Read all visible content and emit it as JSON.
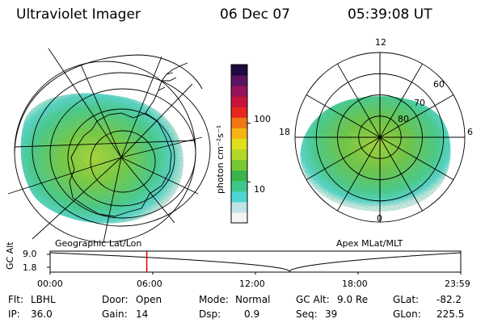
{
  "header": {
    "instrument": "Ultraviolet Imager",
    "date": "06 Dec 07",
    "time": "05:39:08 UT"
  },
  "colorbar": {
    "label": "photon cm⁻²s⁻¹",
    "ticks": [
      "100",
      "10"
    ],
    "tick_values": [
      100,
      10
    ],
    "range": [
      2,
      1000
    ],
    "scale": "log",
    "colors": [
      "#f4f4f4",
      "#bfe4e6",
      "#4fd4d4",
      "#3ec98b",
      "#3ab44b",
      "#78c832",
      "#b4d726",
      "#dfe01c",
      "#f5b414",
      "#f07814",
      "#e6281e",
      "#c8143c",
      "#96145a",
      "#5a1460",
      "#1e0a3c"
    ]
  },
  "left_map": {
    "caption": "Geographic Lat/Lon"
  },
  "right_map": {
    "caption": "Apex MLat/MLT",
    "hour_labels": {
      "top": "12",
      "left": "18",
      "right": "6",
      "bottom": "0"
    },
    "lat_labels": [
      "60",
      "70",
      "80"
    ],
    "lat_values": [
      60,
      70,
      80
    ]
  },
  "timeline": {
    "axis_label": "GC Alt",
    "y_ticks": [
      "9.0",
      "1.8"
    ],
    "y_values": [
      9.0,
      1.8
    ],
    "x_ticks": [
      "00:00",
      "06:00",
      "12:00",
      "18:00",
      "23:59"
    ],
    "current_time_hours": 5.65,
    "marker_color": "#e00000",
    "min_alt_time_hours": 14.0
  },
  "status": {
    "flt_label": "Flt:",
    "flt_value": "LBHL",
    "ip_label": "IP:",
    "ip_value": "36.0",
    "door_label": "Door:",
    "door_value": "Open",
    "gain_label": "Gain:",
    "gain_value": "14",
    "mode_label": "Mode:",
    "mode_value": "Normal",
    "dsp_label": "Dsp:",
    "dsp_value": "0.9",
    "gcalt_label": "GC Alt:",
    "gcalt_value": "9.0 Re",
    "seq_label": "Seq:",
    "seq_value": "39",
    "glat_label": "GLat:",
    "glat_value": "-82.2",
    "glon_label": "GLon:",
    "glon_value": "225.5"
  }
}
